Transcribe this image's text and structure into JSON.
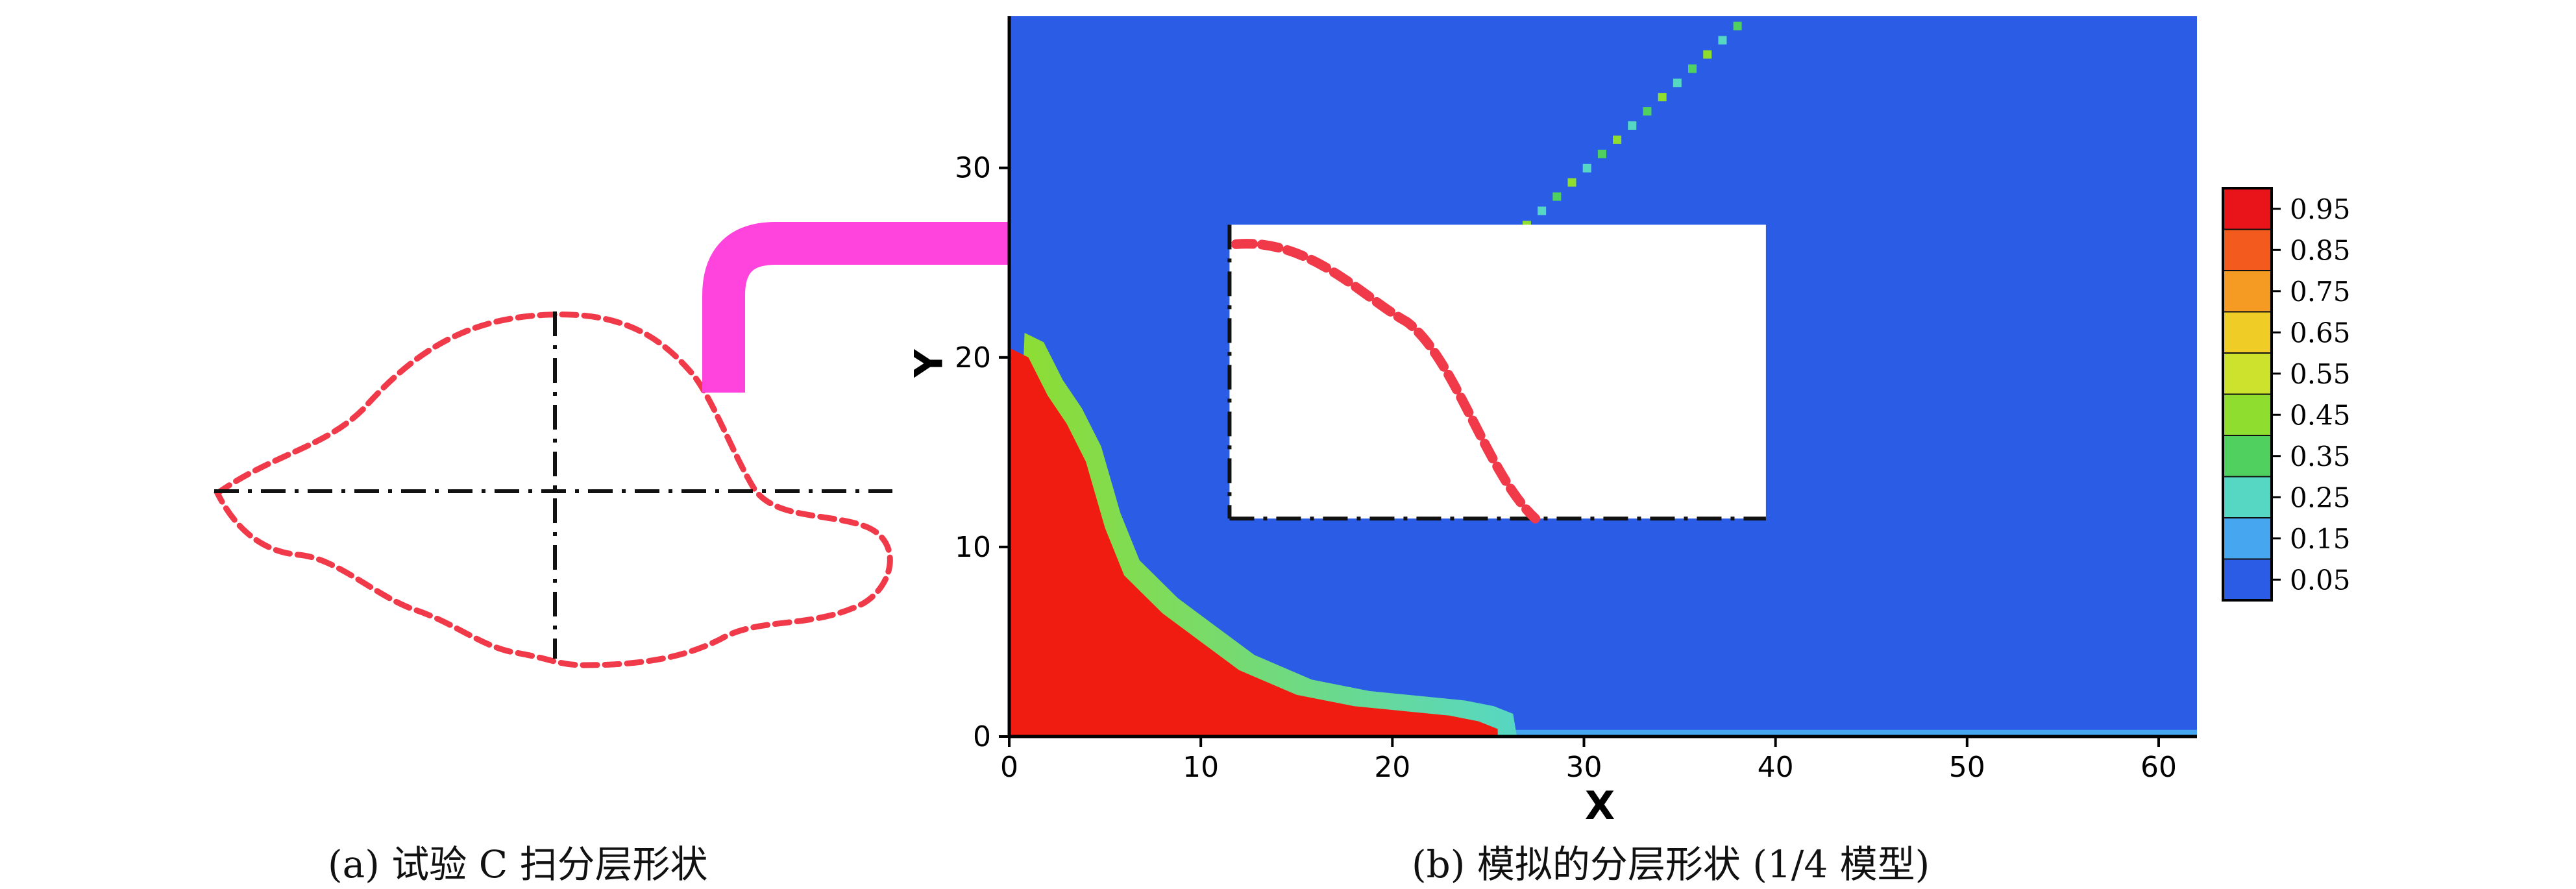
{
  "captions": {
    "a": "(a) 试验 C 扫分层形状",
    "b": "(b) 模拟的分层形状 (1/4 模型)"
  },
  "colors": {
    "background_field": "#2a5ce6",
    "delamination": "#f01c12",
    "dashed_outline": "#f03a4a",
    "arrow": "#ff44dd",
    "axis": "#000000"
  },
  "chart_data": {
    "type": "heatmap",
    "title": "",
    "xlabel": "X",
    "ylabel": "Y",
    "xlim": [
      0,
      62
    ],
    "ylim": [
      0,
      38
    ],
    "x_ticks": [
      0,
      10,
      20,
      30,
      40,
      50,
      60
    ],
    "y_ticks": [
      0,
      10,
      20,
      30
    ],
    "colorbar": {
      "levels": [
        "0.95",
        "0.85",
        "0.75",
        "0.65",
        "0.55",
        "0.45",
        "0.35",
        "0.25",
        "0.15",
        "0.05"
      ],
      "colors": [
        "#e8141a",
        "#f25a1e",
        "#f59a22",
        "#f0cd26",
        "#cde22c",
        "#8fdd2f",
        "#4fd05f",
        "#56d7c3",
        "#47a6f0",
        "#2a5ce6"
      ],
      "legend_position": "right"
    },
    "delamination_boundary_xy": [
      [
        0,
        20.5
      ],
      [
        1,
        20
      ],
      [
        2,
        18
      ],
      [
        3,
        16.5
      ],
      [
        4,
        14.5
      ],
      [
        5,
        11
      ],
      [
        6,
        8.5
      ],
      [
        8,
        6.5
      ],
      [
        10,
        5
      ],
      [
        12,
        3.5
      ],
      [
        15,
        2.2
      ],
      [
        18,
        1.6
      ],
      [
        21,
        1.3
      ],
      [
        23,
        1.1
      ],
      [
        24.5,
        0.8
      ],
      [
        25.5,
        0.4
      ]
    ],
    "crack_line_xy": [
      [
        27,
        27
      ],
      [
        38,
        37.5
      ]
    ],
    "inset_box_xy": {
      "x0": 11.5,
      "x1": 39.5,
      "y0": 11.5,
      "y1": 27
    }
  }
}
